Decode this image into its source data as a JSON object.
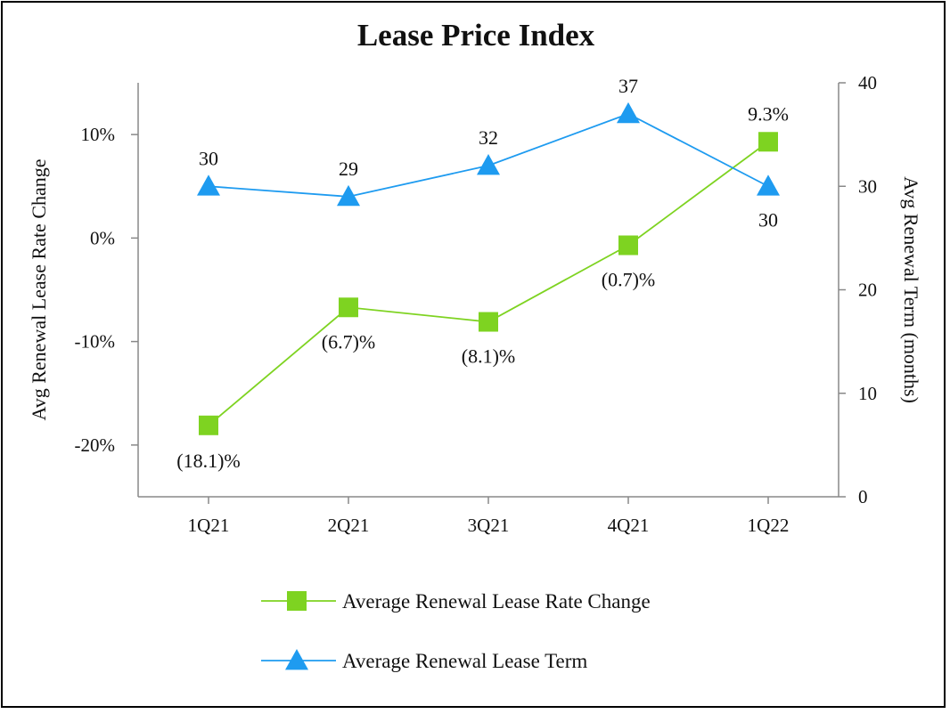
{
  "chart_data": {
    "type": "line",
    "title": "Lease Price Index",
    "categories": [
      "1Q21",
      "2Q21",
      "3Q21",
      "4Q21",
      "1Q22"
    ],
    "y_left": {
      "label": "Avg Renewal Lease Rate Change",
      "range": [
        -25,
        15
      ],
      "ticks": [
        -20,
        -10,
        0,
        10
      ],
      "tick_labels": [
        "-20%",
        "-10%",
        "0%",
        "10%"
      ]
    },
    "y_right": {
      "label": "Avg Renewal Term (months)",
      "range": [
        0,
        40
      ],
      "ticks": [
        0,
        10,
        20,
        30,
        40
      ],
      "tick_labels": [
        "0",
        "10",
        "20",
        "30",
        "40"
      ]
    },
    "series": [
      {
        "name": "Average Renewal Lease Rate Change",
        "axis": "left",
        "marker": "square",
        "color": "#7ED321",
        "values": [
          -18.1,
          -6.7,
          -8.1,
          -0.7,
          9.3
        ],
        "labels": [
          "(18.1)%",
          "(6.7)%",
          "(8.1)%",
          "(0.7)%",
          "9.3%"
        ]
      },
      {
        "name": "Average Renewal Lease Term",
        "axis": "right",
        "marker": "triangle",
        "color": "#1E9BF0",
        "values": [
          30,
          29,
          32,
          37,
          30
        ],
        "labels": [
          "30",
          "29",
          "32",
          "37",
          "30"
        ]
      }
    ],
    "legend_position": "bottom-center"
  }
}
